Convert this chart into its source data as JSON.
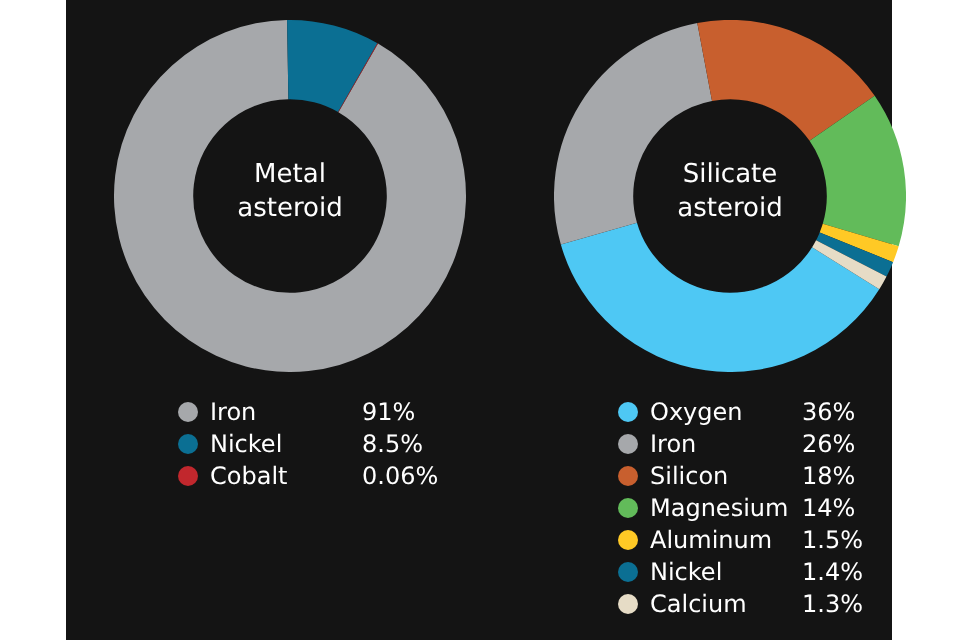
{
  "chart_data": [
    {
      "type": "donut",
      "title": "Metal asteroid",
      "categories": [
        "Iron",
        "Nickel",
        "Cobalt"
      ],
      "values": [
        91,
        8.5,
        0.06
      ],
      "colors": [
        "#a6a8ab",
        "#0b6f93",
        "#c1272d"
      ],
      "value_labels": [
        "91%",
        "8.5%",
        "0.06%"
      ],
      "legend": "bottom"
    },
    {
      "type": "donut",
      "title": "Silicate asteroid",
      "categories": [
        "Oxygen",
        "Iron",
        "Silicon",
        "Magnesium",
        "Aluminum",
        "Nickel",
        "Calcium"
      ],
      "values": [
        36,
        26,
        18,
        14,
        1.5,
        1.4,
        1.3
      ],
      "colors": [
        "#4ec8f4",
        "#a6a8ab",
        "#c85f2e",
        "#62bb5a",
        "#ffc925",
        "#0b6f93",
        "#e6dcc6"
      ],
      "value_labels": [
        "36%",
        "26%",
        "18%",
        "14%",
        "1.5%",
        "1.4%",
        "1.3%"
      ],
      "legend": "bottom"
    }
  ]
}
